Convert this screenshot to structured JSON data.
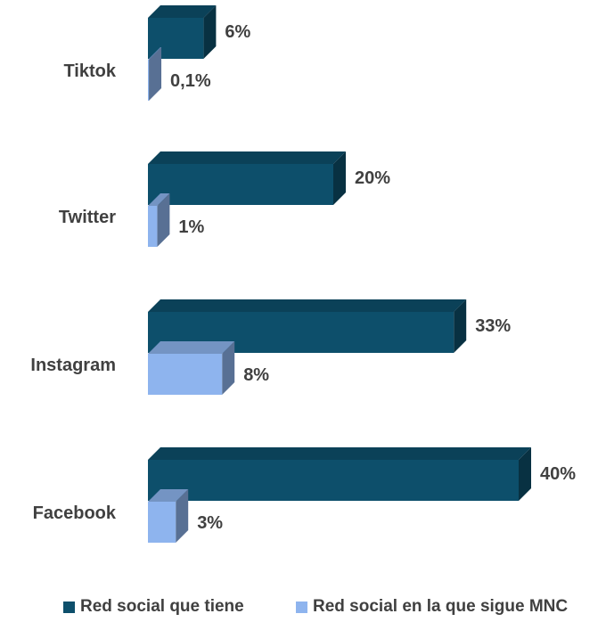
{
  "chart_data": {
    "type": "bar",
    "orientation": "horizontal",
    "categories": [
      "Tiktok",
      "Twitter",
      "Instagram",
      "Facebook"
    ],
    "series": [
      {
        "name": "Red social que tiene",
        "color": "#0d4f6b",
        "values": [
          6,
          20,
          33,
          40
        ],
        "labels": [
          "6%",
          "20%",
          "33%",
          "40%"
        ]
      },
      {
        "name": "Red social en la que sigue MNC",
        "color": "#8eb4ee",
        "values": [
          0.1,
          1,
          8,
          3
        ],
        "labels": [
          "0,1%",
          "1%",
          "8%",
          "3%"
        ]
      }
    ],
    "xlim": [
      0,
      40
    ],
    "style": "3d",
    "grid": false,
    "legend_position": "bottom"
  }
}
